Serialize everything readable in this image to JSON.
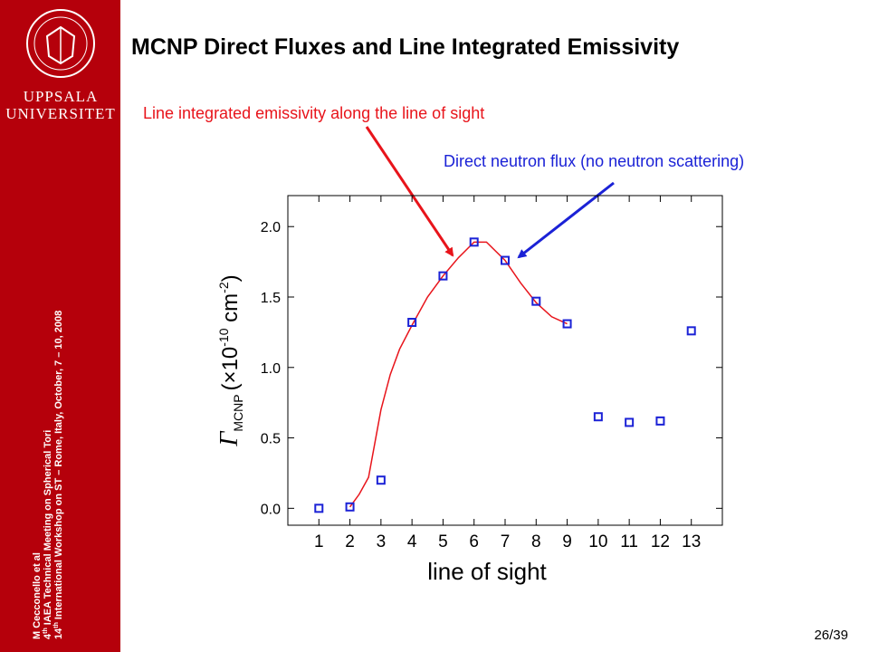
{
  "title": "MCNP Direct Fluxes and Line Integrated Emissivity",
  "logo": {
    "line1": "UPPSALA",
    "line2": "UNIVERSITET"
  },
  "sidebar": {
    "author": "M Cecconello et al",
    "line2": {
      "num": "4",
      "sup": "th",
      "text": " IAEA Technical Meeting on Spherical Tori"
    },
    "line3": {
      "num": "14",
      "sup": "th",
      "text": " International Workshop on ST – Rome, Italy, October, 7 – 10, 2008"
    }
  },
  "page_number": "26/39",
  "chart_data": {
    "type": "scatter",
    "annotations": [
      {
        "text": "Line integrated emissivity along the line of sight",
        "color": "#e8141b"
      },
      {
        "text": "Direct neutron flux (no neutron scattering)",
        "color": "#1b22d6"
      }
    ],
    "x_label": "line of sight",
    "y_label": {
      "symbol": "Γ",
      "subscript": "MCNP",
      "open": "(×10",
      "exponent": "-10",
      "unit": " cm",
      "unit_exponent": "-2",
      "close": ")"
    },
    "x": [
      1,
      2,
      3,
      4,
      5,
      6,
      7,
      8,
      9,
      10,
      11,
      12,
      13
    ],
    "series": [
      {
        "color": "#1b22d6",
        "values": [
          0.0,
          0.01,
          0.2,
          1.32,
          1.65,
          1.89,
          1.76,
          1.47,
          1.31,
          0.65,
          0.61,
          0.62,
          1.26
        ]
      },
      {
        "color": "#e8141b",
        "x": [
          2,
          2.3,
          2.6,
          3,
          3.3,
          3.6,
          4,
          4.5,
          5,
          5.5,
          6,
          6.4,
          7,
          7.5,
          8,
          8.5,
          9
        ],
        "values": [
          0.01,
          0.1,
          0.22,
          0.7,
          0.95,
          1.13,
          1.3,
          1.5,
          1.65,
          1.78,
          1.89,
          1.89,
          1.76,
          1.6,
          1.46,
          1.36,
          1.31
        ]
      }
    ],
    "xlim": [
      0,
      14
    ],
    "ylim": [
      -0.12,
      2.22
    ],
    "xticks": [
      1,
      2,
      3,
      4,
      5,
      6,
      7,
      8,
      9,
      10,
      11,
      12,
      13
    ],
    "yticks": [
      {
        "value": 0,
        "label": "0.0"
      },
      0.5,
      {
        "value": 1,
        "label": "1.0"
      },
      1.5,
      {
        "value": 2,
        "label": "2.0"
      }
    ]
  }
}
